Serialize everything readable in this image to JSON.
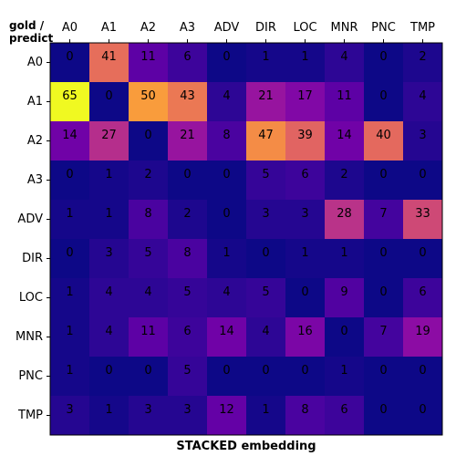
{
  "chart_data": {
    "type": "heatmap",
    "title": "",
    "xlabel": "STACKED embedding",
    "corner_label_lines": [
      "gold /",
      "predict"
    ],
    "x_categories": [
      "A0",
      "A1",
      "A2",
      "A3",
      "ADV",
      "DIR",
      "LOC",
      "MNR",
      "PNC",
      "TMP"
    ],
    "y_categories": [
      "A0",
      "A1",
      "A2",
      "A3",
      "ADV",
      "DIR",
      "LOC",
      "MNR",
      "PNC",
      "TMP"
    ],
    "values": [
      [
        0,
        41,
        11,
        6,
        0,
        1,
        1,
        4,
        0,
        2
      ],
      [
        65,
        0,
        50,
        43,
        4,
        21,
        17,
        11,
        0,
        4
      ],
      [
        14,
        27,
        0,
        21,
        8,
        47,
        39,
        14,
        40,
        3
      ],
      [
        0,
        1,
        2,
        0,
        0,
        5,
        6,
        2,
        0,
        0
      ],
      [
        1,
        1,
        8,
        2,
        0,
        3,
        3,
        28,
        7,
        33
      ],
      [
        0,
        3,
        5,
        8,
        1,
        0,
        1,
        1,
        0,
        0
      ],
      [
        1,
        4,
        4,
        5,
        4,
        5,
        0,
        9,
        0,
        6
      ],
      [
        1,
        4,
        11,
        6,
        14,
        4,
        16,
        0,
        7,
        19
      ],
      [
        1,
        0,
        0,
        5,
        0,
        0,
        0,
        1,
        0,
        0
      ],
      [
        3,
        1,
        3,
        3,
        12,
        1,
        8,
        6,
        0,
        0
      ]
    ],
    "colormap": "plasma",
    "vmin": 0,
    "vmax": 65,
    "x_tick_position": "top",
    "legend": "none"
  }
}
